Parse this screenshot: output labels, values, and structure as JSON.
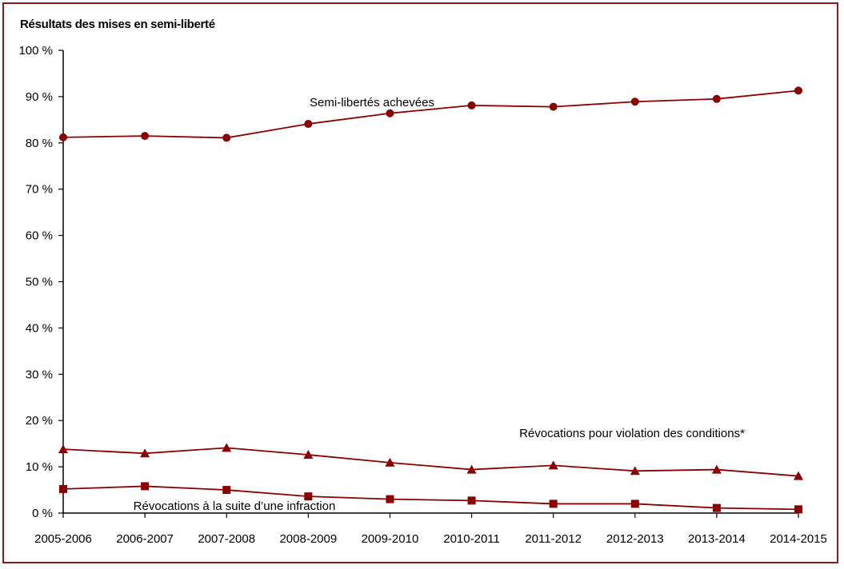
{
  "chart_data": {
    "type": "line",
    "title": "Résultats des mises en semi-liberté",
    "categories": [
      "2005-2006",
      "2006-2007",
      "2007-2008",
      "2008-2009",
      "2009-2010",
      "2010-2011",
      "2011-2012",
      "2012-2013",
      "2013-2014",
      "2014-2015"
    ],
    "y_ticks": [
      "0 %",
      "10 %",
      "20 %",
      "30 %",
      "40 %",
      "50 %",
      "60 %",
      "70 %",
      "80 %",
      "90 %",
      "100 %"
    ],
    "ylim": [
      0,
      100
    ],
    "grid": false,
    "series": [
      {
        "name": "Semi-libertés achevées",
        "marker": "circle",
        "color": "#8b0000",
        "values": [
          81.2,
          81.5,
          81.1,
          84.1,
          86.4,
          88.1,
          87.8,
          88.9,
          89.5,
          91.3
        ]
      },
      {
        "name": "Révocations pour violation des conditions*",
        "marker": "triangle",
        "color": "#8b0000",
        "values": [
          13.8,
          12.9,
          14.1,
          12.6,
          10.9,
          9.4,
          10.3,
          9.1,
          9.4,
          8.0
        ]
      },
      {
        "name": "Révocations à la suite d’une infraction",
        "marker": "square",
        "color": "#8b0000",
        "values": [
          5.2,
          5.8,
          5.0,
          3.6,
          3.0,
          2.7,
          2.0,
          2.0,
          1.1,
          0.8
        ]
      }
    ]
  }
}
